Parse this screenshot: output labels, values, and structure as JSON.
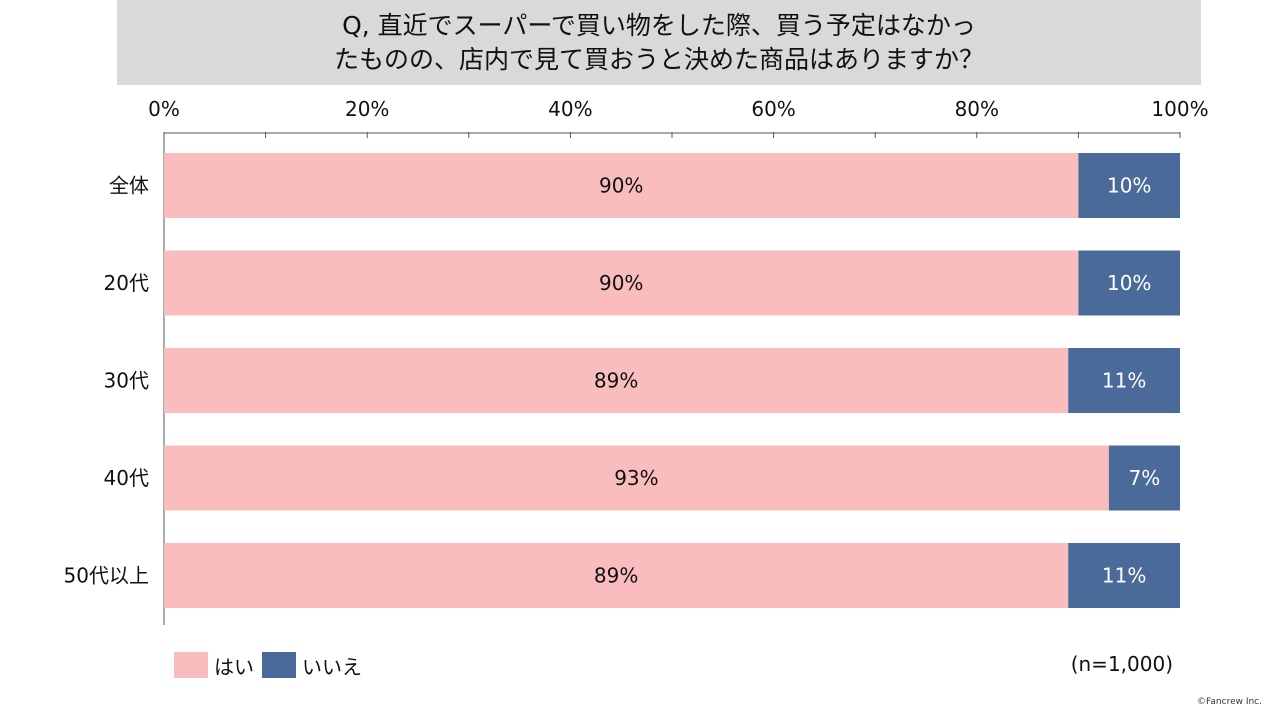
{
  "title": {
    "line1": "Q, 直近でスーパーで買い物をした際、買う予定はなかっ",
    "line2": "たものの、店内で見て買おうと決めた商品はありますか？"
  },
  "note": "(n=1,000)",
  "copyright": "©Fancrew Inc.",
  "colors": {
    "yes": "#f9bdbd",
    "no": "#4a6a9a",
    "title_bg": "#d9d9d9"
  },
  "chart_data": {
    "type": "bar",
    "orientation": "horizontal",
    "stacked": true,
    "percent": true,
    "categories": [
      "全体",
      "20代",
      "30代",
      "40代",
      "50代以上"
    ],
    "series": [
      {
        "name": "はい",
        "values": [
          90,
          90,
          89,
          93,
          89
        ],
        "color": "#f9bdbd",
        "labels": [
          "90%",
          "90%",
          "89%",
          "93%",
          "89%"
        ]
      },
      {
        "name": "いいえ",
        "values": [
          10,
          10,
          11,
          7,
          11
        ],
        "color": "#4a6a9a",
        "labels": [
          "10%",
          "10%",
          "11%",
          "7%",
          "11%"
        ]
      }
    ],
    "xlim": [
      0,
      100
    ],
    "xticks": [
      "0%",
      "20%",
      "40%",
      "60%",
      "80%",
      "100%"
    ],
    "xaxis_position": "top",
    "grid": false,
    "legend_position": "bottom-left"
  }
}
